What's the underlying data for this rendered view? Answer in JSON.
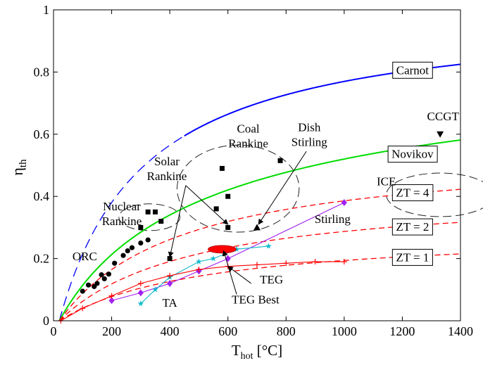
{
  "chart_data": {
    "type": "line",
    "xlabel_main": "T",
    "xlabel_sub": "hot",
    "xlabel_unit": " [°C]",
    "ylabel_main": "η",
    "ylabel_sub": "th",
    "xlim": [
      0,
      1400
    ],
    "ylim": [
      0,
      1
    ],
    "xticks": [
      0,
      200,
      400,
      600,
      800,
      1000,
      1200,
      1400
    ],
    "yticks": [
      0,
      0.2,
      0.4,
      0.6,
      0.8,
      1
    ],
    "ytick_labels": [
      "0",
      "0.2",
      "0.4",
      "0.6",
      "0.8",
      "1"
    ],
    "t_cold_c": 20,
    "curves": [
      {
        "name": "Carnot",
        "model": "carnot",
        "color": "#0000ff",
        "dash": "solid",
        "draw_from": 450,
        "draw_to": 1400
      },
      {
        "name": "Carnot",
        "model": "carnot",
        "color": "#0000ff",
        "dash": "longdash",
        "draw_from": 20,
        "draw_to": 450
      },
      {
        "name": "Novikov",
        "model": "novikov",
        "color": "#00dd00",
        "dash": "solid",
        "draw_from": 20,
        "draw_to": 1400
      },
      {
        "name": "ZT = 4",
        "model": "zt",
        "zt": 4,
        "color": "#ff0000",
        "dash": "dash",
        "draw_from": 20,
        "draw_to": 1400
      },
      {
        "name": "ZT = 2",
        "model": "zt",
        "zt": 2,
        "color": "#ff0000",
        "dash": "dash",
        "draw_from": 20,
        "draw_to": 1400
      },
      {
        "name": "ZT = 1",
        "model": "zt",
        "zt": 1,
        "color": "#ff0000",
        "dash": "dash",
        "draw_from": 20,
        "draw_to": 1400
      }
    ],
    "curve_labels": [
      {
        "text": "Carnot",
        "x": 1235,
        "y": 0.807
      },
      {
        "text": "Novikov",
        "x": 1235,
        "y": 0.537
      },
      {
        "text": "ZT = 4",
        "x": 1235,
        "y": 0.413
      },
      {
        "text": "ZT = 2",
        "x": 1235,
        "y": 0.303
      },
      {
        "text": "ZT = 1",
        "x": 1235,
        "y": 0.205
      }
    ],
    "series": [
      {
        "name": "ORC",
        "marker": "circle",
        "color": "#000000",
        "points": [
          [
            100,
            0.095
          ],
          [
            120,
            0.115
          ],
          [
            140,
            0.11
          ],
          [
            150,
            0.12
          ],
          [
            165,
            0.148
          ],
          [
            175,
            0.135
          ],
          [
            190,
            0.15
          ],
          [
            210,
            0.185
          ],
          [
            240,
            0.21
          ],
          [
            255,
            0.225
          ],
          [
            270,
            0.235
          ],
          [
            300,
            0.25
          ],
          [
            325,
            0.26
          ]
        ]
      },
      {
        "name": "Nuclear Rankine",
        "marker": "square",
        "color": "#000000",
        "points": [
          [
            300,
            0.3
          ],
          [
            325,
            0.35
          ],
          [
            350,
            0.35
          ],
          [
            370,
            0.32
          ]
        ]
      },
      {
        "name": "Solar Rankine",
        "marker": "square",
        "color": "#000000",
        "points": [
          [
            400,
            0.2
          ]
        ]
      },
      {
        "name": "Coal Rankine",
        "marker": "square",
        "color": "#000000",
        "points": [
          [
            560,
            0.36
          ],
          [
            580,
            0.49
          ],
          [
            600,
            0.4
          ],
          [
            600,
            0.3
          ],
          [
            780,
            0.515
          ]
        ]
      },
      {
        "name": "Dish Stirling",
        "marker": "triangle-up",
        "color": "#000000",
        "points": [
          [
            700,
            0.3
          ]
        ]
      },
      {
        "name": "CCGT",
        "marker": "triangle-down",
        "color": "#000000",
        "points": [
          [
            1330,
            0.6
          ]
        ]
      },
      {
        "name": "Stirling",
        "marker": "diamond",
        "color": "#a020f0",
        "points": [
          [
            200,
            0.065
          ],
          [
            300,
            0.09
          ],
          [
            400,
            0.12
          ],
          [
            500,
            0.16
          ],
          [
            600,
            0.2
          ],
          [
            1000,
            0.38
          ]
        ]
      },
      {
        "name": "TA",
        "marker": "star",
        "color": "#11bbcc",
        "points": [
          [
            300,
            0.055
          ],
          [
            350,
            0.1
          ],
          [
            400,
            0.14
          ],
          [
            500,
            0.19
          ],
          [
            550,
            0.2
          ],
          [
            630,
            0.23
          ],
          [
            740,
            0.24
          ]
        ]
      },
      {
        "name": "TEG",
        "marker": "plus",
        "color": "#ff0000",
        "points": [
          [
            25,
            0.0
          ],
          [
            100,
            0.04
          ],
          [
            200,
            0.08
          ],
          [
            300,
            0.12
          ],
          [
            400,
            0.145
          ],
          [
            500,
            0.165
          ],
          [
            600,
            0.175
          ],
          [
            700,
            0.18
          ],
          [
            800,
            0.185
          ],
          [
            900,
            0.19
          ],
          [
            1000,
            0.19
          ]
        ]
      },
      {
        "name": "TEG Best",
        "marker": "ellipse",
        "color": "#ff0000",
        "points": [
          [
            580,
            0.23
          ]
        ]
      }
    ],
    "annotations": [
      {
        "text": "ORC",
        "lines": [
          "ORC"
        ],
        "x": 65,
        "y": 0.195,
        "anchor": "start"
      },
      {
        "text": "Nuclear Rankine",
        "lines": [
          "Nuclear",
          "Rankine"
        ],
        "x": 235,
        "y": 0.355,
        "anchor": "middle"
      },
      {
        "text": "Solar Rankine",
        "lines": [
          "Solar",
          "Rankine"
        ],
        "x": 390,
        "y": 0.5,
        "anchor": "middle"
      },
      {
        "text": "Coal Rankine",
        "lines": [
          "Coal",
          "Rankine"
        ],
        "x": 670,
        "y": 0.605,
        "anchor": "middle"
      },
      {
        "text": "Dish Stirling",
        "lines": [
          "Dish",
          "Stirling"
        ],
        "x": 880,
        "y": 0.61,
        "anchor": "middle"
      },
      {
        "text": "CCGT",
        "lines": [
          "CCGT"
        ],
        "x": 1340,
        "y": 0.645,
        "anchor": "middle"
      },
      {
        "text": "ICE",
        "lines": [
          "ICE"
        ],
        "x": 1145,
        "y": 0.435,
        "anchor": "middle"
      },
      {
        "text": "Stirling",
        "lines": [
          "Stirling"
        ],
        "x": 960,
        "y": 0.315,
        "anchor": "middle"
      },
      {
        "text": "TEG",
        "lines": [
          "TEG"
        ],
        "x": 750,
        "y": 0.12,
        "anchor": "middle"
      },
      {
        "text": "TEG Best",
        "lines": [
          "TEG Best"
        ],
        "x": 695,
        "y": 0.055,
        "anchor": "middle"
      },
      {
        "text": "TA",
        "lines": [
          "TA"
        ],
        "x": 400,
        "y": 0.045,
        "anchor": "middle"
      }
    ],
    "arrows": [
      {
        "from": [
          455,
          0.435
        ],
        "to": [
          400,
          0.205
        ]
      },
      {
        "from": [
          455,
          0.435
        ],
        "to": [
          600,
          0.31
        ]
      },
      {
        "from": [
          870,
          0.545
        ],
        "to": [
          705,
          0.31
        ]
      },
      {
        "from": [
          680,
          0.12
        ],
        "to": [
          600,
          0.175
        ]
      },
      {
        "from": [
          630,
          0.085
        ],
        "to": [
          585,
          0.225
        ]
      }
    ],
    "regions": [
      {
        "name": "Nuclear cluster",
        "cx": 330,
        "cy": 0.333,
        "rx": 105,
        "ry": 0.043
      },
      {
        "name": "Coal cluster",
        "cx": 635,
        "cy": 0.425,
        "rx": 210,
        "ry": 0.14
      },
      {
        "name": "ICE region",
        "cx": 1330,
        "cy": 0.405,
        "rx": 185,
        "ry": 0.07
      }
    ]
  }
}
